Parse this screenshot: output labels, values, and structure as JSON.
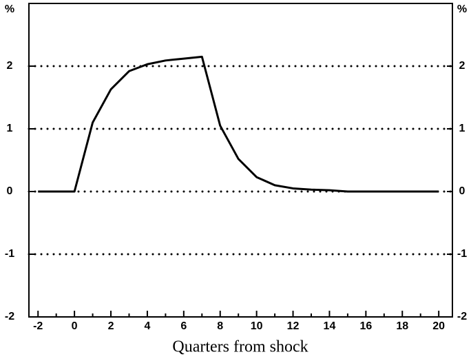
{
  "chart_data": {
    "type": "line",
    "unit_label": "%",
    "x_label": "Quarters from shock",
    "x": [
      -2,
      -1,
      0,
      1,
      2,
      3,
      4,
      5,
      6,
      7,
      8,
      9,
      10,
      11,
      12,
      13,
      14,
      15,
      16,
      17,
      18,
      19,
      20
    ],
    "series": [
      {
        "color": "#000000",
        "values": [
          0,
          0,
          0,
          1.1,
          1.63,
          1.92,
          2.03,
          2.09,
          2.12,
          2.15,
          1.05,
          0.52,
          0.23,
          0.1,
          0.05,
          0.03,
          0.02,
          0,
          0,
          0,
          0,
          0,
          0
        ]
      }
    ],
    "xlim": [
      -2.5,
      20.75
    ],
    "xticks": [
      -2,
      0,
      2,
      4,
      6,
      8,
      10,
      12,
      14,
      16,
      18,
      20
    ],
    "ylim": [
      -2,
      3
    ],
    "yticks": [
      -2,
      -1,
      0,
      1,
      2
    ],
    "grid": true
  }
}
